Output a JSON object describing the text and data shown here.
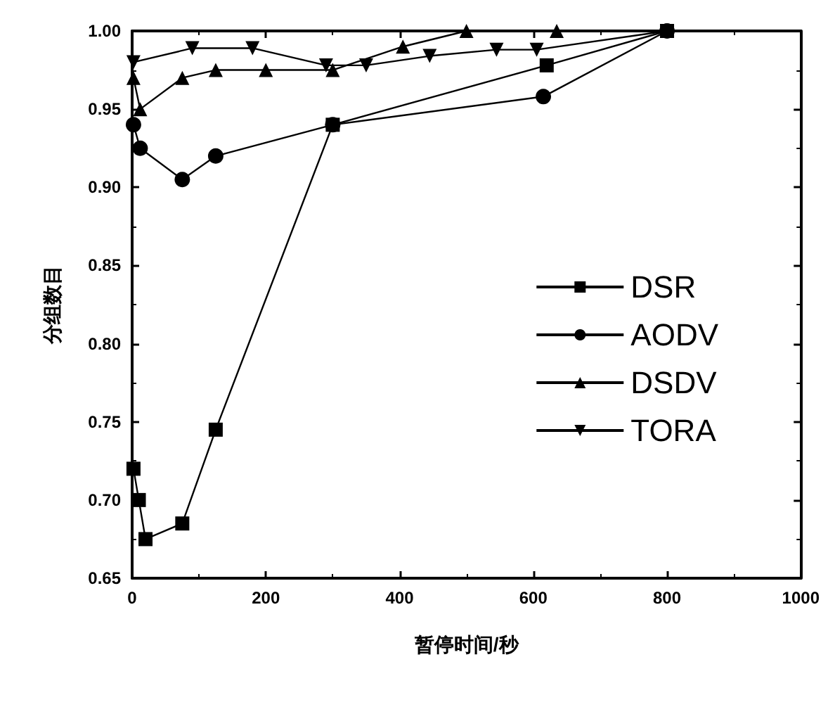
{
  "chart_data": {
    "type": "line",
    "xlabel": "暂停时间/秒",
    "ylabel": "分组数目",
    "xlim": [
      0,
      1000
    ],
    "xticks": [
      0,
      200,
      400,
      600,
      800,
      1000
    ],
    "ylim": [
      0.65,
      1.0
    ],
    "yticks": [
      {
        "value": 0.65,
        "label": "0.65"
      },
      {
        "value": 0.7,
        "label": "0.70"
      },
      {
        "value": 0.75,
        "label": "0.75"
      },
      {
        "value": 0.8,
        "label": "0.80"
      },
      {
        "value": 0.85,
        "label": "0.85"
      },
      {
        "value": 0.9,
        "label": "0.90"
      },
      {
        "value": 0.95,
        "label": "0.95"
      },
      {
        "value": 1.0,
        "label": "1.00"
      }
    ],
    "grid": false,
    "legend": "right",
    "series": [
      {
        "name": "DSR",
        "color": "#000000",
        "marker": "square",
        "x": [
          2,
          10,
          20,
          75,
          125,
          300,
          620,
          800
        ],
        "values": [
          0.72,
          0.7,
          0.675,
          0.685,
          0.745,
          0.94,
          0.978,
          1.0
        ]
      },
      {
        "name": "AODV",
        "color": "#000000",
        "marker": "circle",
        "x": [
          2,
          12,
          75,
          125,
          300,
          615,
          800
        ],
        "values": [
          0.94,
          0.925,
          0.905,
          0.92,
          0.94,
          0.958,
          1.0
        ]
      },
      {
        "name": "DSDV",
        "color": "#000000",
        "marker": "triangle",
        "x": [
          2,
          12,
          75,
          125,
          200,
          300,
          405,
          500,
          635,
          800
        ],
        "values": [
          0.97,
          0.95,
          0.97,
          0.975,
          0.975,
          0.975,
          0.99,
          1.0,
          1.0,
          1.0
        ]
      },
      {
        "name": "TORA",
        "color": "#000000",
        "marker": "triangle",
        "x": [
          2,
          90,
          180,
          290,
          350,
          445,
          545,
          605,
          800
        ],
        "values": [
          0.98,
          0.989,
          0.989,
          0.978,
          0.978,
          0.984,
          0.988,
          0.988,
          1.0
        ]
      }
    ]
  }
}
